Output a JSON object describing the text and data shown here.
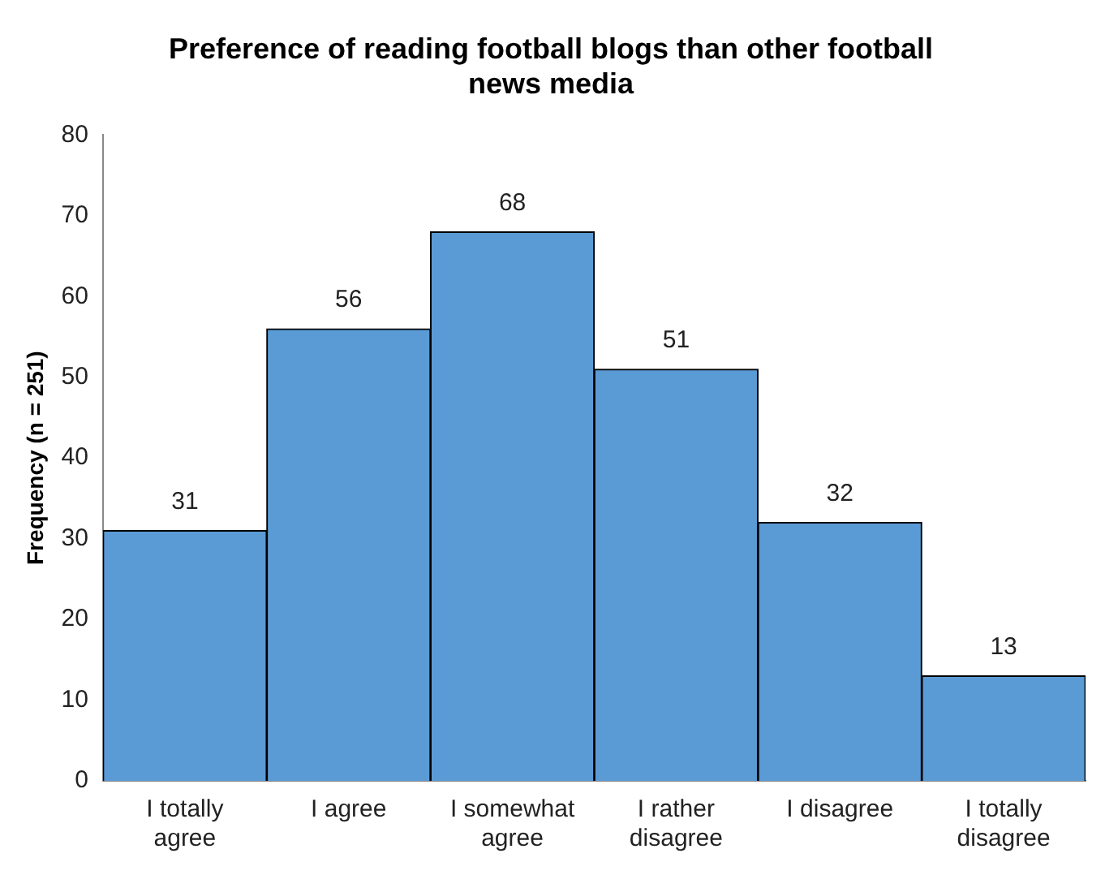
{
  "chart_data": {
    "type": "bar",
    "title": "Preference of reading football blogs than other football news media",
    "ylabel": "Frequency (n = 251)",
    "categories": [
      "I totally agree",
      "I agree",
      "I somewhat agree",
      "I rather disagree",
      "I disagree",
      "I totally disagree"
    ],
    "values": [
      31,
      56,
      68,
      51,
      32,
      13
    ],
    "color": "#5b9bd5",
    "ylim": [
      0,
      80
    ],
    "yticks": [
      0,
      10,
      20,
      30,
      40,
      50,
      60,
      70,
      80
    ],
    "grid": false,
    "legend": false,
    "data_labels": true
  }
}
